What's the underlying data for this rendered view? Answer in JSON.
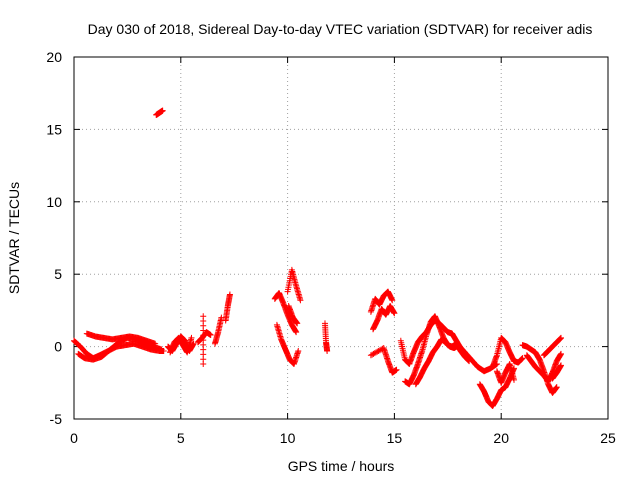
{
  "chart_data": {
    "type": "scatter",
    "title": "Day 030 of 2018, Sidereal Day-to-day VTEC variation (SDTVAR) for receiver adis",
    "xlabel": "GPS time / hours",
    "ylabel": "SDTVAR / TECUs",
    "xlim": [
      0,
      25
    ],
    "ylim": [
      -5,
      20
    ],
    "xticks": [
      0,
      5,
      10,
      15,
      20,
      25
    ],
    "yticks": [
      -5,
      0,
      5,
      10,
      15,
      20
    ],
    "grid": true,
    "marker": "+",
    "series": [
      {
        "name": "SDTVAR",
        "color": "#ff0000",
        "segments": [
          {
            "x": [
              0.0,
              0.3,
              0.6,
              0.9,
              1.2,
              1.6,
              2.0,
              2.4,
              2.8,
              3.2,
              3.6,
              4.0,
              4.2
            ],
            "y": [
              0.4,
              0.0,
              -0.5,
              -0.8,
              -0.6,
              -0.3,
              0.0,
              0.1,
              0.2,
              0.0,
              -0.2,
              -0.3,
              -0.3
            ]
          },
          {
            "x": [
              0.2,
              0.5,
              0.9,
              1.3,
              1.7,
              2.1,
              2.5,
              2.9,
              3.3,
              3.7,
              4.1
            ],
            "y": [
              -0.5,
              -0.8,
              -0.9,
              -0.7,
              -0.2,
              0.3,
              0.6,
              0.5,
              0.2,
              0.0,
              -0.2
            ]
          },
          {
            "x": [
              0.6,
              1.0,
              1.4,
              1.8,
              2.2,
              2.6,
              3.0,
              3.4,
              3.8
            ],
            "y": [
              0.9,
              0.7,
              0.6,
              0.5,
              0.6,
              0.7,
              0.6,
              0.4,
              0.2
            ]
          },
          {
            "x": [
              3.85,
              3.95,
              4.05,
              4.15
            ],
            "y": [
              16.0,
              16.1,
              16.2,
              16.3
            ]
          },
          {
            "x": [
              4.4,
              4.6,
              4.8,
              5.0,
              5.2,
              5.4,
              5.6
            ],
            "y": [
              0.0,
              -0.3,
              0.2,
              0.7,
              0.4,
              -0.3,
              0.2
            ]
          },
          {
            "x": [
              4.5,
              4.7,
              4.9,
              5.1,
              5.3,
              5.5
            ],
            "y": [
              -0.4,
              0.3,
              0.6,
              0.1,
              -0.4,
              0.6
            ]
          },
          {
            "x": [
              5.8,
              6.0,
              6.2,
              6.4
            ],
            "y": [
              0.3,
              0.6,
              1.0,
              0.8
            ]
          },
          {
            "x": [
              6.05,
              6.05
            ],
            "y": [
              2.1,
              -1.2
            ]
          },
          {
            "x": [
              6.6,
              6.75,
              6.9
            ],
            "y": [
              0.2,
              1.0,
              2.0
            ]
          },
          {
            "x": [
              7.1,
              7.2,
              7.3
            ],
            "y": [
              1.8,
              2.8,
              3.6
            ]
          },
          {
            "x": [
              9.4,
              9.6,
              9.8,
              10.0,
              10.2,
              10.4
            ],
            "y": [
              3.3,
              3.7,
              3.0,
              2.2,
              1.5,
              1.0
            ]
          },
          {
            "x": [
              9.5,
              9.7,
              9.9,
              10.1,
              10.3,
              10.5
            ],
            "y": [
              1.5,
              0.5,
              -0.2,
              -0.9,
              -1.2,
              -0.3
            ]
          },
          {
            "x": [
              10.0,
              10.2,
              10.4,
              10.6
            ],
            "y": [
              3.8,
              5.3,
              4.2,
              3.2
            ]
          },
          {
            "x": [
              10.05,
              10.25,
              10.45
            ],
            "y": [
              2.8,
              2.0,
              1.6
            ]
          },
          {
            "x": [
              11.75,
              11.8,
              11.85
            ],
            "y": [
              1.6,
              0.3,
              -0.3
            ]
          },
          {
            "x": [
              13.9,
              14.1,
              14.3,
              14.5,
              14.7,
              14.9
            ],
            "y": [
              2.4,
              3.3,
              2.9,
              3.5,
              3.8,
              3.2
            ]
          },
          {
            "x": [
              14.0,
              14.2,
              14.4,
              14.6,
              14.8,
              15.0
            ],
            "y": [
              1.2,
              1.8,
              2.6,
              2.2,
              2.8,
              2.3
            ]
          },
          {
            "x": [
              13.9,
              14.5,
              14.7,
              14.9,
              15.1
            ],
            "y": [
              -0.6,
              -0.1,
              -1.0,
              -1.8,
              -1.6
            ]
          },
          {
            "x": [
              15.3,
              15.5,
              15.7,
              15.9,
              16.1,
              16.3,
              16.5,
              16.7,
              16.9,
              17.1,
              17.3,
              17.5,
              17.7,
              17.9,
              18.1
            ],
            "y": [
              0.4,
              -0.9,
              -1.2,
              -0.4,
              0.3,
              0.7,
              1.0,
              1.5,
              1.8,
              1.6,
              1.3,
              1.0,
              0.9,
              0.4,
              -0.1
            ]
          },
          {
            "x": [
              15.5,
              15.7,
              15.9,
              16.1,
              16.3,
              16.5,
              16.7,
              16.9,
              17.1,
              17.3,
              17.5,
              17.7,
              17.9,
              18.1,
              18.3,
              18.5
            ],
            "y": [
              -2.4,
              -2.6,
              -2.0,
              -1.2,
              -0.3,
              0.8,
              1.7,
              2.1,
              1.4,
              0.6,
              0.1,
              0.0,
              0.2,
              -0.3,
              -0.7,
              -1.0
            ]
          },
          {
            "x": [
              16.0,
              16.2,
              16.4,
              16.6,
              16.8,
              17.0,
              17.2,
              17.4,
              17.6,
              17.8,
              18.0,
              18.3,
              18.6,
              18.9,
              19.2,
              19.5,
              19.8
            ],
            "y": [
              -2.6,
              -2.1,
              -1.5,
              -1.0,
              -0.4,
              0.0,
              0.5,
              0.3,
              0.0,
              -0.1,
              0.1,
              -0.4,
              -0.9,
              -1.4,
              -1.7,
              -1.5,
              -1.2
            ]
          },
          {
            "x": [
              19.0,
              19.2,
              19.4,
              19.6,
              19.8,
              20.0,
              20.2,
              20.4,
              20.6
            ],
            "y": [
              -2.6,
              -3.1,
              -3.8,
              -4.1,
              -3.6,
              -3.0,
              -2.8,
              -2.2,
              -1.5
            ]
          },
          {
            "x": [
              19.6,
              19.8,
              20.0,
              20.2,
              20.4,
              20.6,
              20.8,
              21.0
            ],
            "y": [
              -1.4,
              -0.6,
              0.6,
              0.3,
              -0.4,
              -1.0,
              -1.1,
              -0.8
            ]
          },
          {
            "x": [
              19.8,
              20.0,
              20.2,
              20.4,
              20.6
            ],
            "y": [
              -1.7,
              -2.5,
              -1.8,
              -1.2,
              -2.3
            ]
          },
          {
            "x": [
              21.0,
              21.2,
              21.4,
              21.6,
              21.8,
              22.0,
              22.2,
              22.4,
              22.6
            ],
            "y": [
              0.1,
              0.0,
              -0.2,
              -0.4,
              -0.9,
              -1.7,
              -2.6,
              -3.2,
              -2.8
            ]
          },
          {
            "x": [
              21.2,
              21.4,
              21.6,
              21.8,
              22.0,
              22.2,
              22.4,
              22.6,
              22.8
            ],
            "y": [
              -0.6,
              -1.0,
              -1.4,
              -1.7,
              -2.0,
              -2.4,
              -1.8,
              -1.0,
              -0.5
            ]
          },
          {
            "x": [
              22.0,
              22.2,
              22.4,
              22.6,
              22.8
            ],
            "y": [
              -0.6,
              -0.3,
              0.0,
              0.3,
              0.6
            ]
          },
          {
            "x": [
              22.4,
              22.6,
              22.8
            ],
            "y": [
              -2.2,
              -1.8,
              -1.3
            ]
          }
        ]
      }
    ]
  }
}
